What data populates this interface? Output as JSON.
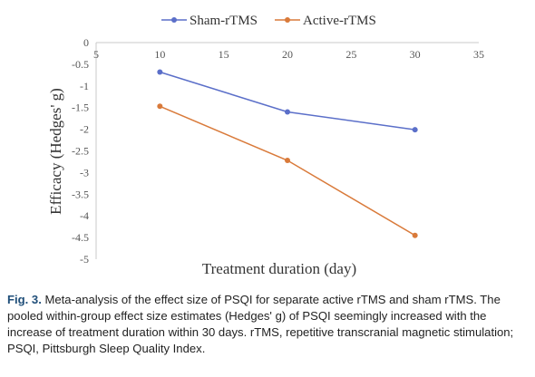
{
  "chart_data": {
    "type": "line",
    "xlabel": "Treatment duration (day)",
    "ylabel": "Efficacy (Hedges' g)",
    "xlim": [
      5,
      35
    ],
    "ylim": [
      -5,
      0
    ],
    "x_ticks": [
      "5",
      "10",
      "15",
      "20",
      "25",
      "30",
      "35"
    ],
    "y_ticks": [
      "0",
      "-0.5",
      "-1",
      "-1.5",
      "-2",
      "-2.5",
      "-3",
      "-3.5",
      "-4",
      "-4.5",
      "-5"
    ],
    "legend_position": "top",
    "grid": false,
    "series": [
      {
        "name": "Sham-rTMS",
        "color": "#5b6fc9",
        "x": [
          10,
          20,
          30
        ],
        "y": [
          -0.68,
          -1.6,
          -2.01
        ]
      },
      {
        "name": "Active-rTMS",
        "color": "#d97a3a",
        "x": [
          10,
          20,
          30
        ],
        "y": [
          -1.47,
          -2.72,
          -4.45
        ]
      }
    ]
  },
  "caption": {
    "label": "Fig. 3.",
    "text": "Meta-analysis of the effect size of PSQI for separate active rTMS and sham rTMS. The pooled within-group effect size estimates (Hedges' g) of PSQI seemingly increased with the increase of treatment duration within 30 days. rTMS, repetitive transcranial magnetic stimulation; PSQI, Pittsburgh Sleep Quality Index."
  }
}
